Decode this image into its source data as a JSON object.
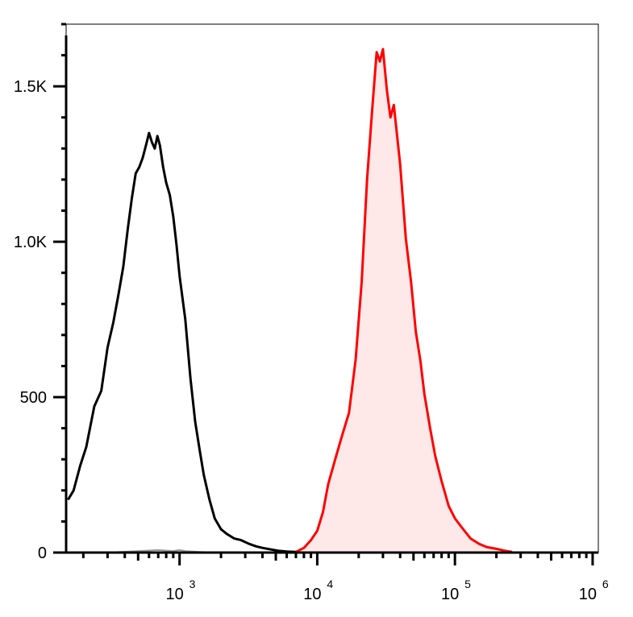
{
  "chart_data": {
    "type": "line",
    "title": "",
    "xlabel": "",
    "ylabel": "",
    "x_scale": "log",
    "xlim": [
      150,
      1100000
    ],
    "ylim": [
      0,
      1700
    ],
    "grid": false,
    "legend": "none",
    "y_ticks": [
      {
        "value": 0,
        "label": "0"
      },
      {
        "value": 500,
        "label": "500"
      },
      {
        "value": 1000,
        "label": "1.0K"
      },
      {
        "value": 1500,
        "label": "1.5K"
      }
    ],
    "x_ticks": [
      {
        "value": 1000,
        "base": "10",
        "exp": "3"
      },
      {
        "value": 10000,
        "base": "10",
        "exp": "4"
      },
      {
        "value": 100000,
        "base": "10",
        "exp": "5"
      },
      {
        "value": 1000000,
        "base": "10",
        "exp": "6"
      }
    ],
    "series": [
      {
        "color": "#000000",
        "fill": "none",
        "x": [
          155,
          170,
          190,
          210,
          240,
          270,
          300,
          330,
          360,
          390,
          420,
          450,
          480,
          510,
          540,
          570,
          600,
          630,
          660,
          690,
          720,
          760,
          800,
          850,
          900,
          950,
          1000,
          1100,
          1200,
          1300,
          1400,
          1500,
          1650,
          1800,
          2000,
          2200,
          2500,
          2800,
          3200,
          3600,
          4000,
          4600,
          5200,
          6000,
          7000
        ],
        "y": [
          170,
          200,
          280,
          340,
          470,
          520,
          660,
          740,
          830,
          920,
          1040,
          1140,
          1220,
          1240,
          1270,
          1310,
          1350,
          1320,
          1300,
          1340,
          1310,
          1240,
          1190,
          1150,
          1080,
          990,
          890,
          750,
          560,
          420,
          330,
          250,
          170,
          110,
          75,
          60,
          45,
          40,
          28,
          20,
          15,
          10,
          6,
          3,
          2
        ]
      },
      {
        "color": "#ff0000",
        "fill": "#ffe8e8",
        "x": [
          7000,
          8000,
          9000,
          10000,
          11000,
          12000,
          13500,
          15000,
          17000,
          19000,
          21000,
          23000,
          25000,
          27000,
          28500,
          30000,
          32000,
          34000,
          36000,
          40000,
          44000,
          48000,
          52000,
          56000,
          60000,
          66000,
          72000,
          80000,
          90000,
          100000,
          115000,
          130000,
          150000,
          170000,
          200000,
          230000,
          260000
        ],
        "y": [
          2,
          15,
          40,
          70,
          130,
          220,
          300,
          370,
          450,
          620,
          870,
          1200,
          1420,
          1610,
          1580,
          1620,
          1490,
          1400,
          1440,
          1250,
          1010,
          870,
          710,
          620,
          510,
          400,
          310,
          230,
          150,
          110,
          75,
          45,
          28,
          18,
          12,
          6,
          2
        ]
      },
      {
        "color": "#999999",
        "fill": "none",
        "x": [
          150,
          300,
          500,
          700,
          900,
          1000,
          1100,
          1200,
          1400,
          1600,
          2000,
          3000,
          5000,
          10000,
          100000,
          1000000
        ],
        "y": [
          0,
          0,
          5,
          8,
          5,
          8,
          5,
          4,
          2,
          1,
          0,
          0,
          0,
          0,
          0,
          0
        ]
      }
    ]
  }
}
